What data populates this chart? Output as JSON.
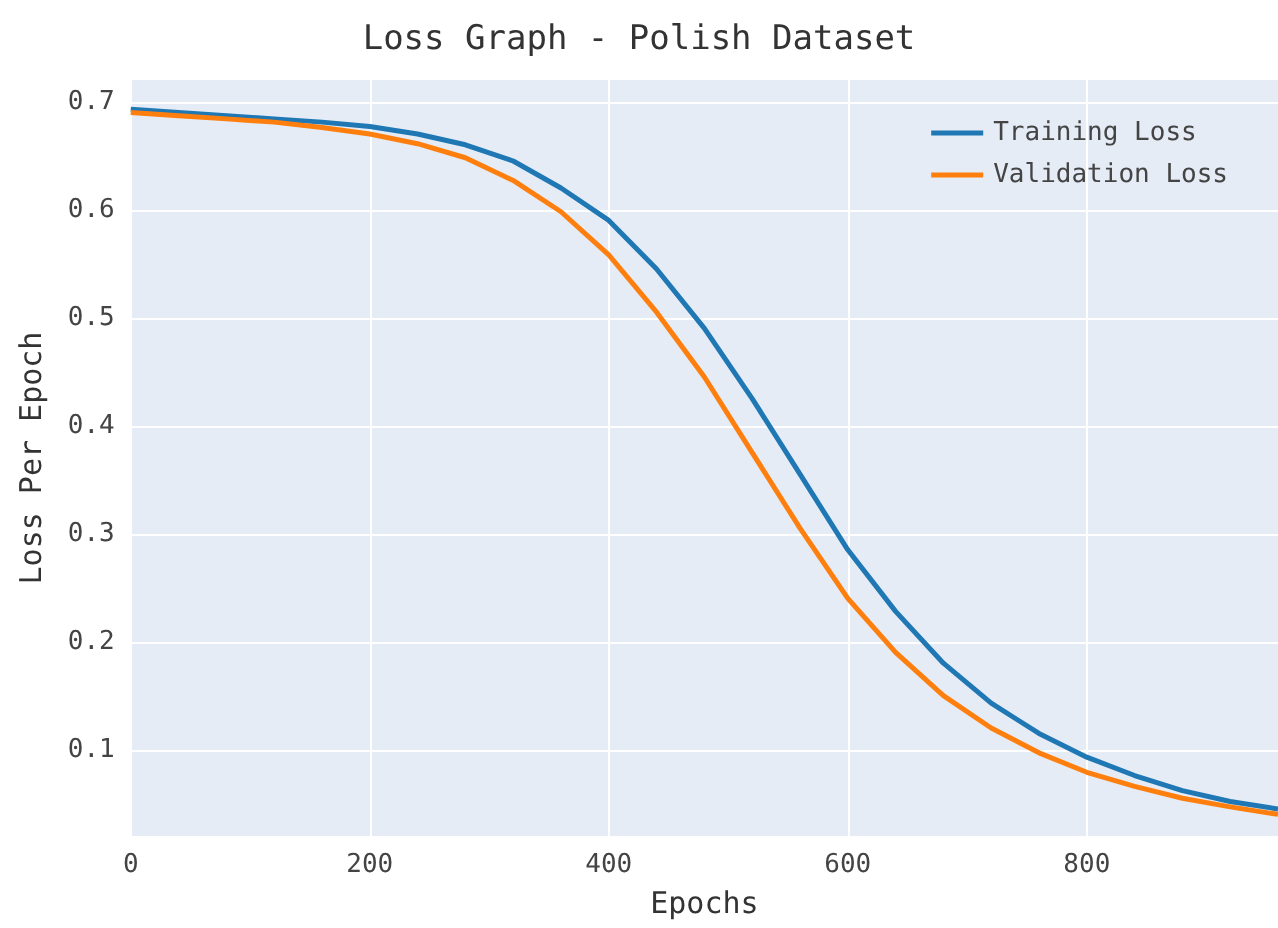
{
  "chart_data": {
    "type": "line",
    "title": "Loss Graph - Polish Dataset",
    "xlabel": "Epochs",
    "ylabel": "Loss Per Epoch",
    "x": [
      0,
      40,
      80,
      120,
      160,
      200,
      240,
      280,
      320,
      360,
      400,
      440,
      480,
      520,
      560,
      600,
      640,
      680,
      720,
      760,
      800,
      840,
      880,
      920,
      960
    ],
    "series": [
      {
        "name": "Training Loss",
        "color": "#1f77b4",
        "values": [
          0.693,
          0.69,
          0.687,
          0.684,
          0.681,
          0.677,
          0.67,
          0.66,
          0.645,
          0.62,
          0.59,
          0.545,
          0.49,
          0.425,
          0.355,
          0.285,
          0.228,
          0.18,
          0.143,
          0.115,
          0.093,
          0.076,
          0.062,
          0.052,
          0.045
        ]
      },
      {
        "name": "Validation Loss",
        "color": "#ff7f0e",
        "values": [
          0.69,
          0.687,
          0.684,
          0.681,
          0.676,
          0.67,
          0.661,
          0.648,
          0.627,
          0.598,
          0.558,
          0.505,
          0.445,
          0.375,
          0.305,
          0.24,
          0.19,
          0.15,
          0.12,
          0.097,
          0.079,
          0.066,
          0.055,
          0.047,
          0.04
        ]
      }
    ],
    "xlim": [
      0,
      960
    ],
    "xticks": [
      0,
      200,
      400,
      600,
      800
    ],
    "ylim": [
      0.02,
      0.72
    ],
    "yticks": [
      0.1,
      0.2,
      0.3,
      0.4,
      0.5,
      0.6,
      0.7
    ],
    "grid": true,
    "legend": "top right"
  }
}
